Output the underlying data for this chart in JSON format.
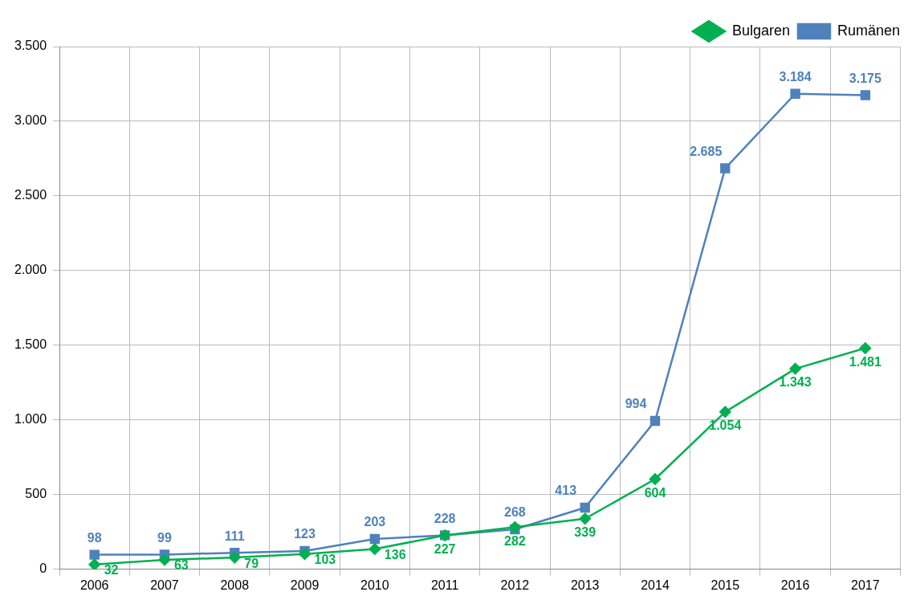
{
  "chart_data": {
    "type": "line",
    "categories": [
      "2006",
      "2007",
      "2008",
      "2009",
      "2010",
      "2011",
      "2012",
      "2013",
      "2014",
      "2015",
      "2016",
      "2017"
    ],
    "series": [
      {
        "name": "Bulgaren",
        "color": "#00b050",
        "marker": "diamond",
        "values": [
          32,
          63,
          79,
          103,
          136,
          227,
          282,
          339,
          604,
          1054,
          1343,
          1481
        ],
        "value_labels": [
          "32",
          "63",
          "79",
          "103",
          "136",
          "227",
          "282",
          "339",
          "604",
          "1.054",
          "1.343",
          "1.481"
        ]
      },
      {
        "name": "Rumänen",
        "color": "#4f81bd",
        "marker": "square",
        "values": [
          98,
          99,
          111,
          123,
          203,
          228,
          268,
          413,
          994,
          2685,
          3184,
          3175
        ],
        "value_labels": [
          "98",
          "99",
          "111",
          "123",
          "203",
          "228",
          "268",
          "413",
          "994",
          "2.685",
          "3.184",
          "3.175"
        ]
      }
    ],
    "ylim": [
      0,
      3500
    ],
    "yticks": [
      {
        "value": 0,
        "label": "0"
      },
      {
        "value": 500,
        "label": "500"
      },
      {
        "value": 1000,
        "label": "1.000"
      },
      {
        "value": 1500,
        "label": "1.500"
      },
      {
        "value": 2000,
        "label": "2.000"
      },
      {
        "value": 2500,
        "label": "2.500"
      },
      {
        "value": 3000,
        "label": "3.000"
      },
      {
        "value": 3500,
        "label": "3.500"
      }
    ],
    "grid": true,
    "legend": "top right",
    "line_style": "solid"
  }
}
